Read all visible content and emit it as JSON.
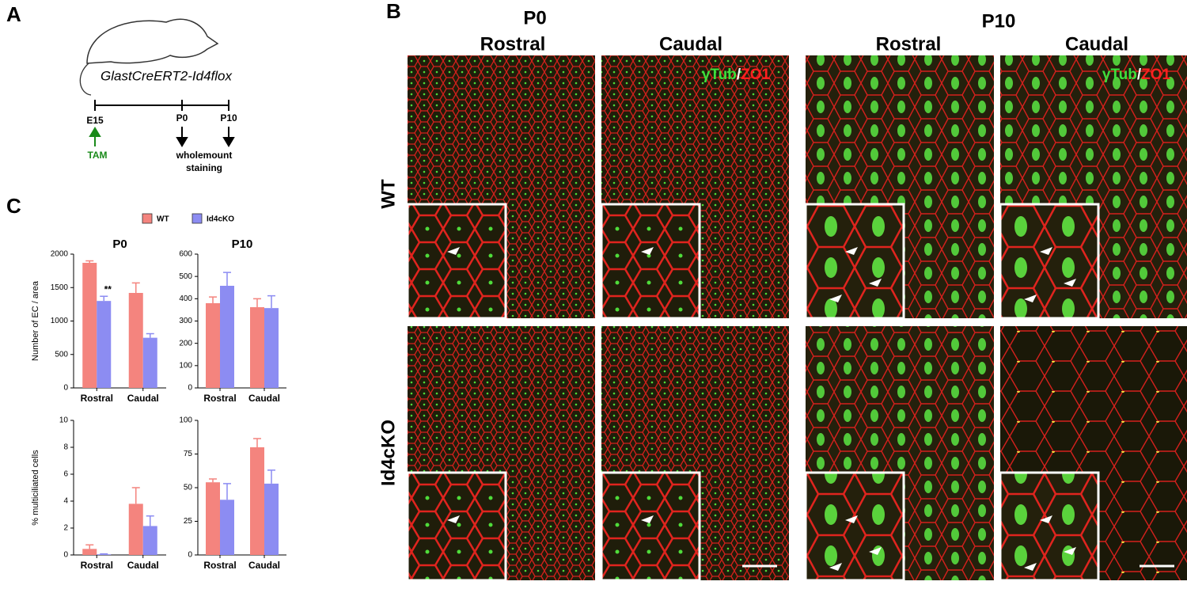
{
  "panel_a": {
    "label": "A",
    "genotype": "GlastCreERT2-Id4flox",
    "timeline": [
      "E15",
      "P0",
      "P10"
    ],
    "treatment": "TAM",
    "endpoint": [
      "wholemount",
      "staining"
    ]
  },
  "panel_b": {
    "label": "B",
    "ages": [
      "P0",
      "P10"
    ],
    "regions": [
      "Rostral",
      "Caudal"
    ],
    "rows": [
      "WT",
      "Id4cKO"
    ],
    "stain": {
      "green": "γTub",
      "sep": "/",
      "red": "ZO1"
    }
  },
  "panel_c": {
    "label": "C"
  },
  "chart_data": [
    {
      "type": "bar",
      "title": "P0",
      "y_label": "Number of EC / area",
      "categories": [
        "Rostral",
        "Caudal"
      ],
      "series": [
        {
          "name": "WT",
          "color": "#f4847e",
          "values": [
            1870,
            1420
          ],
          "errors": [
            30,
            150
          ]
        },
        {
          "name": "Id4cKO",
          "color": "#8c8cf2",
          "values": [
            1300,
            750
          ],
          "errors": [
            70,
            60
          ]
        }
      ],
      "annotations": [
        "**"
      ],
      "ylim": [
        0,
        2000
      ],
      "yticks": [
        0,
        500,
        1000,
        1500,
        2000
      ]
    },
    {
      "type": "bar",
      "title": "P10",
      "categories": [
        "Rostral",
        "Caudal"
      ],
      "series": [
        {
          "name": "WT",
          "color": "#f4847e",
          "values": [
            380,
            362
          ],
          "errors": [
            28,
            38
          ]
        },
        {
          "name": "Id4cKO",
          "color": "#8c8cf2",
          "values": [
            458,
            358
          ],
          "errors": [
            60,
            55
          ]
        }
      ],
      "ylim": [
        0,
        600
      ],
      "yticks": [
        0,
        100,
        200,
        300,
        400,
        500,
        600
      ]
    },
    {
      "type": "bar",
      "y_label": "% multiciliated cells",
      "categories": [
        "Rostral",
        "Caudal"
      ],
      "series": [
        {
          "name": "WT",
          "color": "#f4847e",
          "values": [
            0.45,
            3.8
          ],
          "errors": [
            0.3,
            1.2
          ]
        },
        {
          "name": "Id4cKO",
          "color": "#8c8cf2",
          "values": [
            0.05,
            2.15
          ],
          "errors": [
            0.03,
            0.75
          ]
        }
      ],
      "ylim": [
        0,
        10
      ],
      "yticks": [
        0,
        2,
        4,
        6,
        8,
        10
      ]
    },
    {
      "type": "bar",
      "categories": [
        "Rostral",
        "Caudal"
      ],
      "series": [
        {
          "name": "WT",
          "color": "#f4847e",
          "values": [
            54,
            80
          ],
          "errors": [
            2.5,
            6.5
          ]
        },
        {
          "name": "Id4cKO",
          "color": "#8c8cf2",
          "values": [
            41,
            53
          ],
          "errors": [
            12,
            10
          ]
        }
      ],
      "ylim": [
        0,
        100
      ],
      "yticks": [
        0,
        25,
        50,
        75,
        100
      ]
    }
  ]
}
